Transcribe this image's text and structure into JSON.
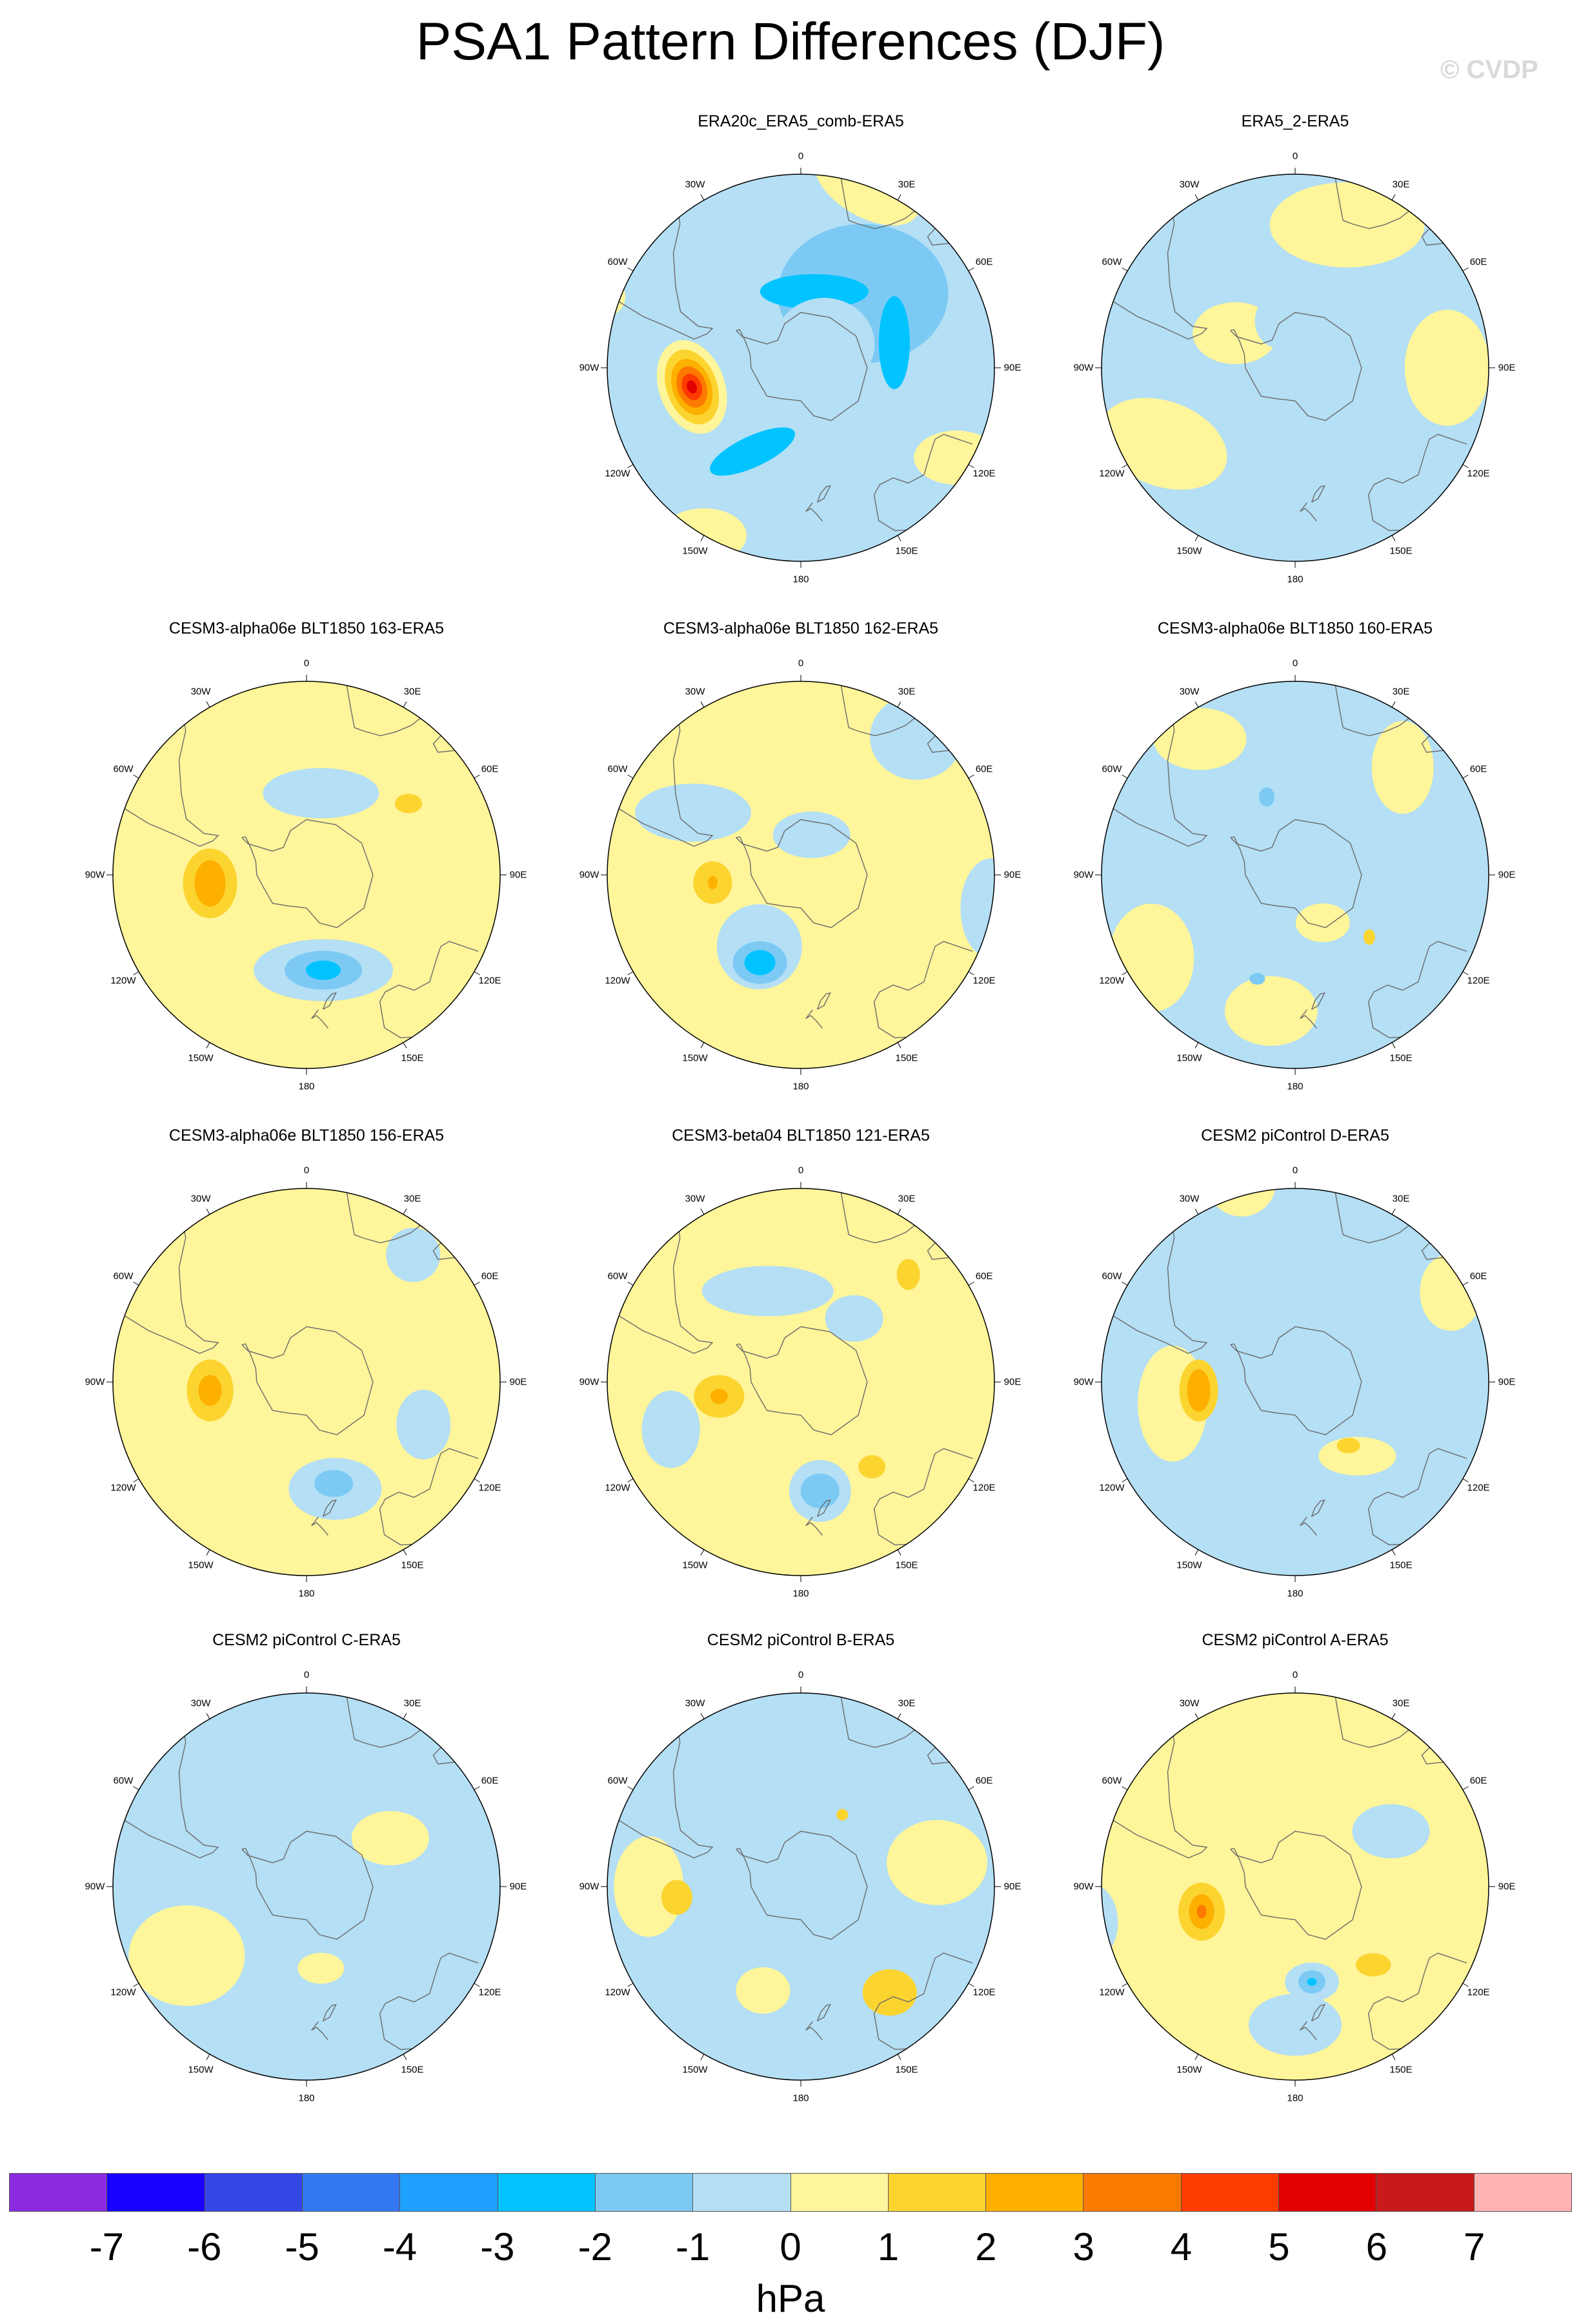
{
  "title": "PSA1 Pattern Differences (DJF)",
  "watermark": "© CVDP",
  "longitude_labels": [
    "0",
    "30E",
    "60E",
    "90E",
    "120E",
    "150E",
    "180",
    "150W",
    "120W",
    "90W",
    "60W",
    "30W"
  ],
  "panels": [
    {
      "title": "ERA20c_ERA5_comb-ERA5",
      "row": 0,
      "col": 1,
      "background": "#b4dff5",
      "blobs": [
        {
          "lon": 20,
          "lat": -20,
          "rx": 0.3,
          "ry": 0.16,
          "rot": 30,
          "level": "0"
        },
        {
          "lon": 120,
          "lat": -25,
          "rx": 0.22,
          "ry": 0.14,
          "rot": 0,
          "level": "0"
        },
        {
          "lon": -150,
          "lat": -20,
          "rx": 0.22,
          "ry": 0.14,
          "rot": 0,
          "level": "0"
        },
        {
          "lon": -70,
          "lat": -15,
          "rx": 0.1,
          "ry": 0.1,
          "rot": 0,
          "level": "0"
        },
        {
          "lon": 40,
          "lat": -55,
          "rx": 0.44,
          "ry": 0.36,
          "rot": 0,
          "level": "-2"
        },
        {
          "lon": 10,
          "lat": -62,
          "rx": 0.28,
          "ry": 0.09,
          "rot": 0,
          "level": "-3"
        },
        {
          "lon": 75,
          "lat": -55,
          "rx": 0.08,
          "ry": 0.24,
          "rot": 0,
          "level": "-3"
        },
        {
          "lon": -150,
          "lat": -55,
          "rx": 0.24,
          "ry": 0.08,
          "rot": -25,
          "level": "-3"
        },
        {
          "lon": 45,
          "lat": -78,
          "rx": 0.26,
          "ry": 0.24,
          "rot": 0,
          "level": "-1"
        },
        {
          "lon": -100,
          "lat": -50,
          "rx": 0.17,
          "ry": 0.25,
          "rot": -20,
          "level": "0"
        },
        {
          "lon": -100,
          "lat": -50,
          "rx": 0.13,
          "ry": 0.2,
          "rot": -20,
          "level": "1"
        },
        {
          "lon": -100,
          "lat": -50,
          "rx": 0.1,
          "ry": 0.15,
          "rot": -20,
          "level": "2"
        },
        {
          "lon": -100,
          "lat": -50,
          "rx": 0.075,
          "ry": 0.11,
          "rot": -20,
          "level": "3"
        },
        {
          "lon": -100,
          "lat": -50,
          "rx": 0.05,
          "ry": 0.07,
          "rot": -20,
          "level": "4"
        },
        {
          "lon": -100,
          "lat": -50,
          "rx": 0.025,
          "ry": 0.035,
          "rot": -20,
          "level": "5"
        }
      ]
    },
    {
      "title": "ERA5_2-ERA5",
      "row": 0,
      "col": 2,
      "background": "#b4dff5",
      "blobs": [
        {
          "lon": 20,
          "lat": -35,
          "rx": 0.4,
          "ry": 0.22,
          "rot": 0,
          "level": "0"
        },
        {
          "lon": -120,
          "lat": -35,
          "rx": 0.34,
          "ry": 0.22,
          "rot": 20,
          "level": "0"
        },
        {
          "lon": 90,
          "lat": -35,
          "rx": 0.22,
          "ry": 0.3,
          "rot": 0,
          "level": "0"
        },
        {
          "lon": -60,
          "lat": -65,
          "rx": 0.22,
          "ry": 0.16,
          "rot": 0,
          "level": "0"
        },
        {
          "lon": -20,
          "lat": -72,
          "rx": 0.12,
          "ry": 0.14,
          "rot": 0,
          "level": "-1"
        }
      ]
    },
    {
      "title": "CESM3-alpha06e BLT1850 163-ERA5",
      "row": 1,
      "col": 0,
      "background": "#fff59a",
      "blobs": [
        {
          "lon": 10,
          "lat": -60,
          "rx": 0.3,
          "ry": 0.13,
          "rot": 0,
          "level": "-1"
        },
        {
          "lon": 170,
          "lat": -55,
          "rx": 0.36,
          "ry": 0.16,
          "rot": 0,
          "level": "-1"
        },
        {
          "lon": 30,
          "lat": -10,
          "rx": 0.14,
          "ry": 0.1,
          "rot": 0,
          "level": "-1"
        },
        {
          "lon": 170,
          "lat": -55,
          "rx": 0.2,
          "ry": 0.1,
          "rot": 0,
          "level": "-2"
        },
        {
          "lon": 170,
          "lat": -55,
          "rx": 0.09,
          "ry": 0.05,
          "rot": 0,
          "level": "-3"
        },
        {
          "lon": -95,
          "lat": -55,
          "rx": 0.14,
          "ry": 0.18,
          "rot": 0,
          "level": "1"
        },
        {
          "lon": -95,
          "lat": -55,
          "rx": 0.08,
          "ry": 0.12,
          "rot": 0,
          "level": "2"
        },
        {
          "lon": 55,
          "lat": -45,
          "rx": 0.07,
          "ry": 0.05,
          "rot": 0,
          "level": "1"
        }
      ]
    },
    {
      "title": "CESM3-alpha06e BLT1850 162-ERA5",
      "row": 1,
      "col": 1,
      "background": "#fff59a",
      "blobs": [
        {
          "lon": 40,
          "lat": -25,
          "rx": 0.24,
          "ry": 0.22,
          "rot": 0,
          "level": "-1"
        },
        {
          "lon": -60,
          "lat": -45,
          "rx": 0.3,
          "ry": 0.15,
          "rot": 0,
          "level": "-1"
        },
        {
          "lon": 100,
          "lat": -20,
          "rx": 0.16,
          "ry": 0.26,
          "rot": 0,
          "level": "-1"
        },
        {
          "lon": -150,
          "lat": -60,
          "rx": 0.22,
          "ry": 0.22,
          "rot": 0,
          "level": "-1"
        },
        {
          "lon": 15,
          "lat": -75,
          "rx": 0.2,
          "ry": 0.12,
          "rot": 0,
          "level": "-1"
        },
        {
          "lon": -155,
          "lat": -55,
          "rx": 0.14,
          "ry": 0.11,
          "rot": 0,
          "level": "-2"
        },
        {
          "lon": -155,
          "lat": -55,
          "rx": 0.08,
          "ry": 0.065,
          "rot": 0,
          "level": "-3"
        },
        {
          "lon": -95,
          "lat": -58,
          "rx": 0.1,
          "ry": 0.11,
          "rot": 0,
          "level": "1"
        },
        {
          "lon": -95,
          "lat": -58,
          "rx": 0.025,
          "ry": 0.035,
          "rot": 0,
          "level": "2"
        }
      ]
    },
    {
      "title": "CESM3-alpha06e BLT1850 160-ERA5",
      "row": 1,
      "col": 2,
      "background": "#b4dff5",
      "blobs": [
        {
          "lon": -35,
          "lat": -30,
          "rx": 0.24,
          "ry": 0.16,
          "rot": 0,
          "level": "0"
        },
        {
          "lon": 45,
          "lat": -35,
          "rx": 0.16,
          "ry": 0.24,
          "rot": 0,
          "level": "0"
        },
        {
          "lon": -120,
          "lat": -30,
          "rx": 0.22,
          "ry": 0.28,
          "rot": 0,
          "level": "0"
        },
        {
          "lon": -170,
          "lat": -40,
          "rx": 0.24,
          "ry": 0.18,
          "rot": 0,
          "level": "0"
        },
        {
          "lon": 150,
          "lat": -70,
          "rx": 0.14,
          "ry": 0.1,
          "rot": 0,
          "level": "0"
        },
        {
          "lon": 130,
          "lat": -55,
          "rx": 0.03,
          "ry": 0.04,
          "rot": 0,
          "level": "1"
        },
        {
          "lon": -20,
          "lat": -60,
          "rx": 0.04,
          "ry": 0.05,
          "rot": 0,
          "level": "-2"
        },
        {
          "lon": -160,
          "lat": -50,
          "rx": 0.04,
          "ry": 0.03,
          "rot": 0,
          "level": "-2"
        }
      ]
    },
    {
      "title": "CESM3-alpha06e BLT1850 156-ERA5",
      "row": 2,
      "col": 0,
      "background": "#fff59a",
      "blobs": [
        {
          "lon": 40,
          "lat": -30,
          "rx": 0.14,
          "ry": 0.14,
          "rot": 0,
          "level": "-1"
        },
        {
          "lon": 110,
          "lat": -45,
          "rx": 0.14,
          "ry": 0.18,
          "rot": 0,
          "level": "-1"
        },
        {
          "lon": -75,
          "lat": -10,
          "rx": 0.1,
          "ry": 0.08,
          "rot": 0,
          "level": "-1"
        },
        {
          "lon": 165,
          "lat": -50,
          "rx": 0.24,
          "ry": 0.16,
          "rot": 0,
          "level": "-1"
        },
        {
          "lon": 165,
          "lat": -52,
          "rx": 0.1,
          "ry": 0.07,
          "rot": 0,
          "level": "-2"
        },
        {
          "lon": -95,
          "lat": -55,
          "rx": 0.12,
          "ry": 0.16,
          "rot": 0,
          "level": "1"
        },
        {
          "lon": -95,
          "lat": -55,
          "rx": 0.06,
          "ry": 0.08,
          "rot": 0,
          "level": "2"
        }
      ]
    },
    {
      "title": "CESM3-beta04 BLT1850 121-ERA5",
      "row": 2,
      "col": 1,
      "background": "#fff59a",
      "blobs": [
        {
          "lon": -20,
          "lat": -55,
          "rx": 0.34,
          "ry": 0.13,
          "rot": 0,
          "level": "-1"
        },
        {
          "lon": -110,
          "lat": -40,
          "rx": 0.15,
          "ry": 0.2,
          "rot": 0,
          "level": "-1"
        },
        {
          "lon": 170,
          "lat": -50,
          "rx": 0.16,
          "ry": 0.16,
          "rot": 0,
          "level": "-1"
        },
        {
          "lon": 170,
          "lat": -50,
          "rx": 0.1,
          "ry": 0.09,
          "rot": 0,
          "level": "-2"
        },
        {
          "lon": 40,
          "lat": -60,
          "rx": 0.15,
          "ry": 0.12,
          "rot": 0,
          "level": "-1"
        },
        {
          "lon": -100,
          "lat": -60,
          "rx": 0.13,
          "ry": 0.11,
          "rot": 0,
          "level": "1"
        },
        {
          "lon": -100,
          "lat": -60,
          "rx": 0.045,
          "ry": 0.04,
          "rot": 0,
          "level": "2"
        },
        {
          "lon": 45,
          "lat": -35,
          "rx": 0.06,
          "ry": 0.08,
          "rot": 0,
          "level": "1"
        },
        {
          "lon": 140,
          "lat": -50,
          "rx": 0.07,
          "ry": 0.06,
          "rot": 0,
          "level": "1"
        }
      ]
    },
    {
      "title": "CESM2 piControl D-ERA5",
      "row": 2,
      "col": 2,
      "background": "#b4dff5",
      "blobs": [
        {
          "lon": -15,
          "lat": -15,
          "rx": 0.18,
          "ry": 0.18,
          "rot": 0,
          "level": "0"
        },
        {
          "lon": 60,
          "lat": -25,
          "rx": 0.16,
          "ry": 0.2,
          "rot": 0,
          "level": "0"
        },
        {
          "lon": -100,
          "lat": -45,
          "rx": 0.18,
          "ry": 0.3,
          "rot": 0,
          "level": "0"
        },
        {
          "lon": 140,
          "lat": -55,
          "rx": 0.2,
          "ry": 0.1,
          "rot": 0,
          "level": "0"
        },
        {
          "lon": -95,
          "lat": -55,
          "rx": 0.1,
          "ry": 0.16,
          "rot": 0,
          "level": "1"
        },
        {
          "lon": -95,
          "lat": -55,
          "rx": 0.06,
          "ry": 0.11,
          "rot": 0,
          "level": "2"
        },
        {
          "lon": 140,
          "lat": -60,
          "rx": 0.06,
          "ry": 0.04,
          "rot": 0,
          "level": "1"
        }
      ]
    },
    {
      "title": "CESM2 piControl C-ERA5",
      "row": 3,
      "col": 0,
      "background": "#b4dff5",
      "blobs": [
        {
          "lon": -120,
          "lat": -40,
          "rx": 0.3,
          "ry": 0.26,
          "rot": 0,
          "level": "0"
        },
        {
          "lon": 60,
          "lat": -55,
          "rx": 0.2,
          "ry": 0.14,
          "rot": 0,
          "level": "0"
        },
        {
          "lon": 170,
          "lat": -60,
          "rx": 0.12,
          "ry": 0.08,
          "rot": 0,
          "level": "0"
        },
        {
          "lon": 160,
          "lat": -30,
          "rx": 0.1,
          "ry": 0.03,
          "rot": 0,
          "level": "-1"
        }
      ]
    },
    {
      "title": "CESM2 piControl B-ERA5",
      "row": 3,
      "col": 1,
      "background": "#b4dff5",
      "blobs": [
        {
          "lon": 80,
          "lat": -40,
          "rx": 0.26,
          "ry": 0.22,
          "rot": 0,
          "level": "0"
        },
        {
          "lon": -90,
          "lat": -35,
          "rx": 0.18,
          "ry": 0.26,
          "rot": 0,
          "level": "0"
        },
        {
          "lon": -160,
          "lat": -50,
          "rx": 0.14,
          "ry": 0.12,
          "rot": 0,
          "level": "0"
        },
        {
          "lon": 140,
          "lat": -40,
          "rx": 0.14,
          "ry": 0.12,
          "rot": 0,
          "level": "1"
        },
        {
          "lon": -95,
          "lat": -45,
          "rx": 0.08,
          "ry": 0.09,
          "rot": 0,
          "level": "1"
        },
        {
          "lon": 30,
          "lat": -60,
          "rx": 0.03,
          "ry": 0.03,
          "rot": 0,
          "level": "1"
        }
      ]
    },
    {
      "title": "CESM2 piControl A-ERA5",
      "row": 3,
      "col": 2,
      "background": "#fff59a",
      "blobs": [
        {
          "lon": 60,
          "lat": -50,
          "rx": 0.2,
          "ry": 0.14,
          "rot": 0,
          "level": "-1"
        },
        {
          "lon": -100,
          "lat": -15,
          "rx": 0.14,
          "ry": 0.2,
          "rot": 0,
          "level": "-1"
        },
        {
          "lon": 180,
          "lat": -40,
          "rx": 0.24,
          "ry": 0.16,
          "rot": 0,
          "level": "-1"
        },
        {
          "lon": 170,
          "lat": -55,
          "rx": 0.14,
          "ry": 0.1,
          "rot": 0,
          "level": "-1"
        },
        {
          "lon": 170,
          "lat": -55,
          "rx": 0.07,
          "ry": 0.06,
          "rot": 0,
          "level": "-2"
        },
        {
          "lon": 170,
          "lat": -55,
          "rx": 0.025,
          "ry": 0.02,
          "rot": 0,
          "level": "-3"
        },
        {
          "lon": -105,
          "lat": -55,
          "rx": 0.12,
          "ry": 0.15,
          "rot": 0,
          "level": "1"
        },
        {
          "lon": -105,
          "lat": -55,
          "rx": 0.065,
          "ry": 0.09,
          "rot": 0,
          "level": "2"
        },
        {
          "lon": -105,
          "lat": -55,
          "rx": 0.025,
          "ry": 0.035,
          "rot": 0,
          "level": "3"
        },
        {
          "lon": 135,
          "lat": -50,
          "rx": 0.09,
          "ry": 0.06,
          "rot": 0,
          "level": "1"
        }
      ]
    }
  ],
  "colorbar": {
    "colors": [
      "#8a2be2",
      "#1a00ff",
      "#3446e6",
      "#3478f0",
      "#1fa0ff",
      "#00c3ff",
      "#7ccaf4",
      "#b4dff5",
      "#fff59a",
      "#fcd430",
      "#fdb000",
      "#fd7a00",
      "#ff3c00",
      "#e30000",
      "#c81a1a",
      "#ffb3b3"
    ],
    "ticks": [
      "-7",
      "-6",
      "-5",
      "-4",
      "-3",
      "-2",
      "-1",
      "0",
      "1",
      "2",
      "3",
      "4",
      "5",
      "6",
      "7"
    ],
    "units": "hPa"
  },
  "level_colors": {
    "-7": "#1a00ff",
    "-6": "#3446e6",
    "-5": "#3478f0",
    "-4": "#1fa0ff",
    "-3": "#00c3ff",
    "-2": "#7ccaf4",
    "-1": "#b4dff5",
    "0": "#fff59a",
    "1": "#fcd430",
    "2": "#fdb000",
    "3": "#fd7a00",
    "4": "#ff3c00",
    "5": "#e30000",
    "6": "#c81a1a",
    "7": "#ffb3b3"
  }
}
